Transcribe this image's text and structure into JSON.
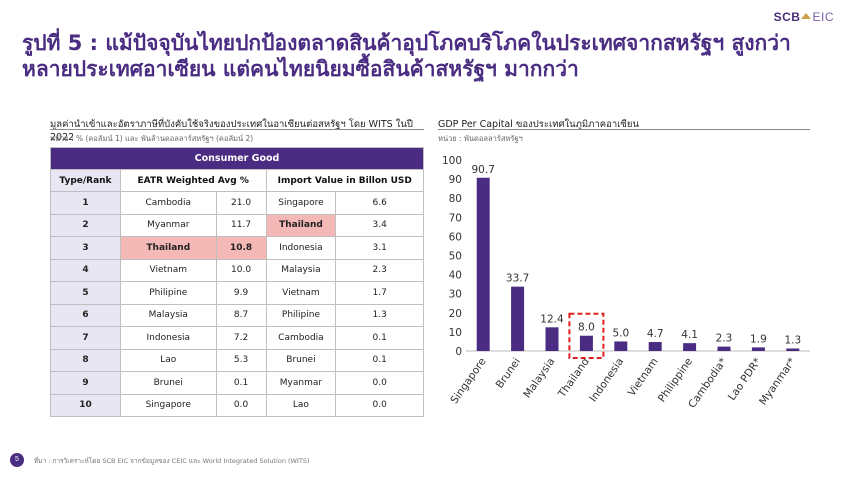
{
  "logo": {
    "scb": "SCB",
    "eic": "EIC"
  },
  "title": "รูปที่ 5 : แม้ปัจจุบันไทยปกป้องตลาดสินค้าอุปโภคบริโภคในประเทศจากสหรัฐฯ สูงกว่าหลายประเทศอาเซียน แต่คนไทยนิยมซื้อสินค้าสหรัฐฯ มากกว่า",
  "table": {
    "title": "มูลค่านำเข้าและอัตราภาษีที่บังคับใช้จริงของประเทศในอาเซียนต่อสหรัฐฯ โดย WITS ในปี 2022",
    "unit": "หน่วย : % (คอลัมน์ 1) และ พันล้านดอลลาร์สหรัฐฯ (คอลัมน์ 2)",
    "group_header": "Consumer Good",
    "headers": {
      "rank": "Type/Rank",
      "eatr": "EATR Weighted Avg %",
      "import": "Import Value in Billon USD"
    },
    "highlight_color": "#f4b8b6",
    "rows": [
      {
        "rank": "1",
        "eatr_country": "Cambodia",
        "eatr_value": "21.0",
        "imp_country": "Singapore",
        "imp_value": "6.6"
      },
      {
        "rank": "2",
        "eatr_country": "Myanmar",
        "eatr_value": "11.7",
        "imp_country": "Thailand",
        "imp_value": "3.4"
      },
      {
        "rank": "3",
        "eatr_country": "Thailand",
        "eatr_value": "10.8",
        "imp_country": "Indonesia",
        "imp_value": "3.1"
      },
      {
        "rank": "4",
        "eatr_country": "Vietnam",
        "eatr_value": "10.0",
        "imp_country": "Malaysia",
        "imp_value": "2.3"
      },
      {
        "rank": "5",
        "eatr_country": "Philipine",
        "eatr_value": "9.9",
        "imp_country": "Vietnam",
        "imp_value": "1.7"
      },
      {
        "rank": "6",
        "eatr_country": "Malaysia",
        "eatr_value": "8.7",
        "imp_country": "Philipine",
        "imp_value": "1.3"
      },
      {
        "rank": "7",
        "eatr_country": "Indonesia",
        "eatr_value": "7.2",
        "imp_country": "Cambodia",
        "imp_value": "0.1"
      },
      {
        "rank": "8",
        "eatr_country": "Lao",
        "eatr_value": "5.3",
        "imp_country": "Brunei",
        "imp_value": "0.1"
      },
      {
        "rank": "9",
        "eatr_country": "Brunei",
        "eatr_value": "0.1",
        "imp_country": "Myanmar",
        "imp_value": "0.0"
      },
      {
        "rank": "10",
        "eatr_country": "Singapore",
        "eatr_value": "0.0",
        "imp_country": "Lao",
        "imp_value": "0.0"
      }
    ]
  },
  "chart_data": {
    "type": "bar",
    "title": "GDP Per Capital ของประเทศในภูมิภาคอาเซียน",
    "subtitle": "หน่วย : พันดอลลาร์สหรัฐฯ",
    "categories": [
      "Singapore",
      "Brunei",
      "Malaysia",
      "Thailand",
      "Indonesia",
      "Vietnam",
      "Philippine",
      "Cambodia*",
      "Lao PDR*",
      "Myanmar*"
    ],
    "values": [
      90.7,
      33.7,
      12.4,
      8.0,
      5.0,
      4.7,
      4.1,
      2.3,
      1.9,
      1.3
    ],
    "value_labels": [
      "90.7",
      "33.7",
      "12.4",
      "8.0",
      "5.0",
      "4.7",
      "4.1",
      "2.3",
      "1.9",
      "1.3"
    ],
    "yticks": [
      "0",
      "10",
      "20",
      "30",
      "40",
      "50",
      "60",
      "70",
      "80",
      "90",
      "100"
    ],
    "ylim": [
      0,
      100
    ],
    "grid": false,
    "highlight_category": "Thailand",
    "bar_color": "#4a2d82",
    "highlight_box_color": "#e02020"
  },
  "footer": {
    "page": "5",
    "source": "ที่มา : การวิเคราะห์โดย SCB EIC จากข้อมูลของ CEIC และ World Integrated Solution (WITS)"
  }
}
